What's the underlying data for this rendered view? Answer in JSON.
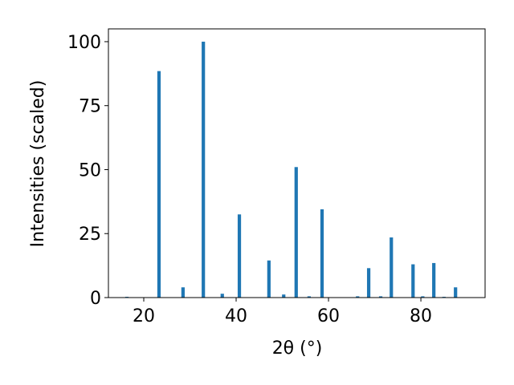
{
  "chart_data": {
    "type": "bar",
    "xlabel": "2θ (°)",
    "ylabel": "Intensities (scaled)",
    "x": [
      16.35,
      23.3,
      28.5,
      32.9,
      37.0,
      40.7,
      47.1,
      50.3,
      53.0,
      55.8,
      58.6,
      66.3,
      68.7,
      71.3,
      73.6,
      78.3,
      80.4,
      82.8,
      85.0,
      87.5
    ],
    "values": [
      0.3,
      88.5,
      4,
      100,
      1.5,
      32.5,
      14.5,
      1.2,
      51,
      0.5,
      34.5,
      0.5,
      11.5,
      0.5,
      23.5,
      13,
      0.5,
      13.5,
      0.3,
      4
    ],
    "color": "#1f77b4",
    "xlim": [
      12.35,
      93.9
    ],
    "xticks": [
      20,
      40,
      60,
      80
    ],
    "ylim": [
      0,
      105
    ],
    "yticks": [
      0,
      25,
      50,
      75,
      100
    ]
  }
}
